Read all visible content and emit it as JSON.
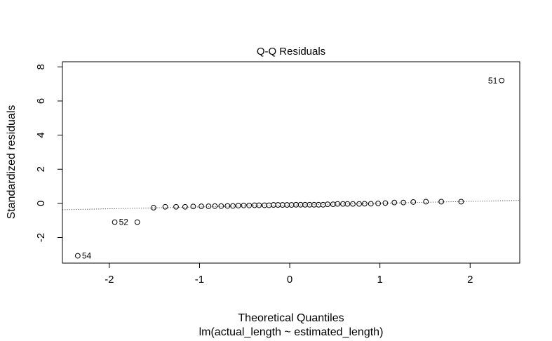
{
  "chart_data": {
    "type": "scatter",
    "title": "Q-Q Residuals",
    "xlabel": "Theoretical Quantiles",
    "subtitle": "lm(actual_length ~ estimated_length)",
    "ylabel": "Standardized residuals",
    "xlim": [
      -2.52,
      2.55
    ],
    "ylim": [
      -3.5,
      8.3
    ],
    "x_ticks": [
      -2,
      -1,
      0,
      1,
      2
    ],
    "x_tick_labels": [
      "-2",
      "-1",
      "0",
      "1",
      "2"
    ],
    "y_ticks": [
      -2,
      0,
      2,
      4,
      6,
      8
    ],
    "y_tick_labels": [
      "-2",
      "0",
      "2",
      "4",
      "6",
      "8"
    ],
    "reference_line": {
      "style": "dotted",
      "slope": 0.108,
      "intercept": -0.1
    },
    "points": [
      {
        "x": -2.35,
        "y": -3.07
      },
      {
        "x": -1.94,
        "y": -1.1
      },
      {
        "x": -1.69,
        "y": -1.1
      },
      {
        "x": -1.51,
        "y": -0.25
      },
      {
        "x": -1.38,
        "y": -0.2
      },
      {
        "x": -1.26,
        "y": -0.2
      },
      {
        "x": -1.16,
        "y": -0.2
      },
      {
        "x": -1.07,
        "y": -0.18
      },
      {
        "x": -0.98,
        "y": -0.17
      },
      {
        "x": -0.9,
        "y": -0.17
      },
      {
        "x": -0.83,
        "y": -0.16
      },
      {
        "x": -0.76,
        "y": -0.16
      },
      {
        "x": -0.69,
        "y": -0.15
      },
      {
        "x": -0.63,
        "y": -0.15
      },
      {
        "x": -0.57,
        "y": -0.13
      },
      {
        "x": -0.51,
        "y": -0.12
      },
      {
        "x": -0.45,
        "y": -0.12
      },
      {
        "x": -0.39,
        "y": -0.11
      },
      {
        "x": -0.34,
        "y": -0.11
      },
      {
        "x": -0.28,
        "y": -0.11
      },
      {
        "x": -0.23,
        "y": -0.11
      },
      {
        "x": -0.18,
        "y": -0.09
      },
      {
        "x": -0.13,
        "y": -0.09
      },
      {
        "x": -0.08,
        "y": -0.09
      },
      {
        "x": -0.03,
        "y": -0.09
      },
      {
        "x": 0.02,
        "y": -0.09
      },
      {
        "x": 0.07,
        "y": -0.08
      },
      {
        "x": 0.12,
        "y": -0.08
      },
      {
        "x": 0.17,
        "y": -0.08
      },
      {
        "x": 0.22,
        "y": -0.08
      },
      {
        "x": 0.27,
        "y": -0.08
      },
      {
        "x": 0.32,
        "y": -0.08
      },
      {
        "x": 0.37,
        "y": -0.08
      },
      {
        "x": 0.42,
        "y": -0.05
      },
      {
        "x": 0.48,
        "y": -0.05
      },
      {
        "x": 0.53,
        "y": -0.03
      },
      {
        "x": 0.59,
        "y": -0.03
      },
      {
        "x": 0.64,
        "y": -0.03
      },
      {
        "x": 0.7,
        "y": -0.03
      },
      {
        "x": 0.77,
        "y": -0.03
      },
      {
        "x": 0.83,
        "y": -0.02
      },
      {
        "x": 0.9,
        "y": -0.02
      },
      {
        "x": 0.98,
        "y": 0.0
      },
      {
        "x": 1.06,
        "y": 0.02
      },
      {
        "x": 1.16,
        "y": 0.05
      },
      {
        "x": 1.26,
        "y": 0.05
      },
      {
        "x": 1.37,
        "y": 0.08
      },
      {
        "x": 1.51,
        "y": 0.1
      },
      {
        "x": 1.68,
        "y": 0.1
      },
      {
        "x": 1.9,
        "y": 0.1
      },
      {
        "x": 2.35,
        "y": 7.2
      }
    ],
    "point_labels": [
      {
        "index": 0,
        "text": "54",
        "side": "right"
      },
      {
        "index": 1,
        "text": "52",
        "side": "right"
      },
      {
        "index": 50,
        "text": "51",
        "side": "left"
      }
    ]
  }
}
